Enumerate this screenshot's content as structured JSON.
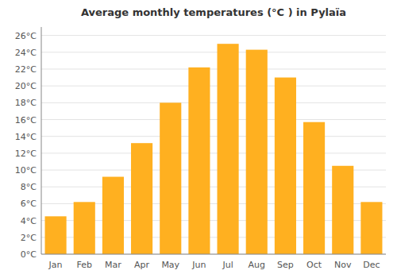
{
  "chart_data": {
    "type": "bar",
    "title": "Average monthly temperatures (°C ) in Pylaïa",
    "categories": [
      "Jan",
      "Feb",
      "Mar",
      "Apr",
      "May",
      "Jun",
      "Jul",
      "Aug",
      "Sep",
      "Oct",
      "Nov",
      "Dec"
    ],
    "values": [
      4.5,
      6.2,
      9.2,
      13.2,
      18.0,
      22.2,
      25.0,
      24.3,
      21.0,
      15.7,
      10.5,
      6.2
    ],
    "color": "#FFB020",
    "ylim": [
      0,
      27
    ],
    "yticks": [
      {
        "value": 0,
        "label": "0°C"
      },
      {
        "value": 2,
        "label": "2°C"
      },
      {
        "value": 4,
        "label": "4°C"
      },
      {
        "value": 6,
        "label": "6°C"
      },
      {
        "value": 8,
        "label": "8°C"
      },
      {
        "value": 10,
        "label": "10°C"
      },
      {
        "value": 12,
        "label": "12°C"
      },
      {
        "value": 14,
        "label": "14°C"
      },
      {
        "value": 16,
        "label": "16°C"
      },
      {
        "value": 18,
        "label": "18°C"
      },
      {
        "value": 20,
        "label": "20°C"
      },
      {
        "value": 22,
        "label": "22°C"
      },
      {
        "value": 24,
        "label": "24°C"
      },
      {
        "value": 26,
        "label": "26°C"
      }
    ],
    "grid": true
  }
}
